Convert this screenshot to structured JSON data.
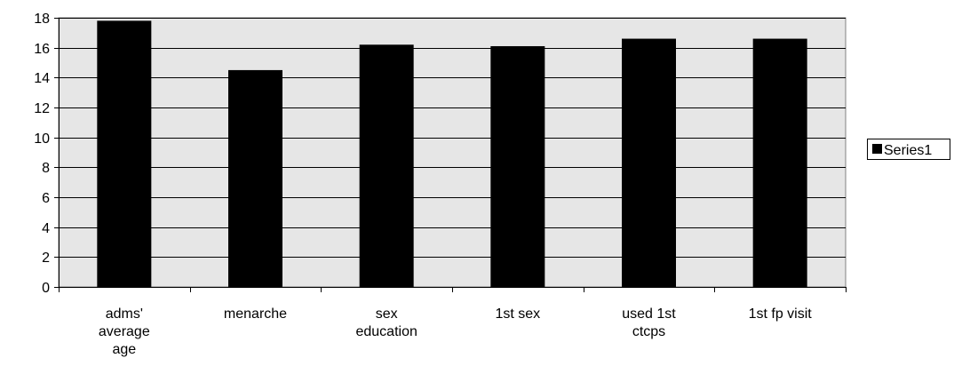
{
  "chart_data": {
    "type": "bar",
    "categories": [
      [
        "adms'",
        "average",
        "age"
      ],
      [
        "menarche"
      ],
      [
        "sex",
        "education"
      ],
      [
        "1st sex"
      ],
      [
        "used 1st",
        "ctcps"
      ],
      [
        "1st fp visit"
      ]
    ],
    "series": [
      {
        "name": "Series1",
        "values": [
          17.8,
          14.5,
          16.2,
          16.1,
          16.6,
          16.6
        ],
        "color": "#000000"
      }
    ],
    "ylim": [
      0,
      18
    ],
    "yticks": [
      0,
      2,
      4,
      6,
      8,
      10,
      12,
      14,
      16,
      18
    ],
    "grid": true,
    "plot_background": "#e6e6e6",
    "legend_position": "right",
    "title": "",
    "xlabel": "",
    "ylabel": ""
  }
}
